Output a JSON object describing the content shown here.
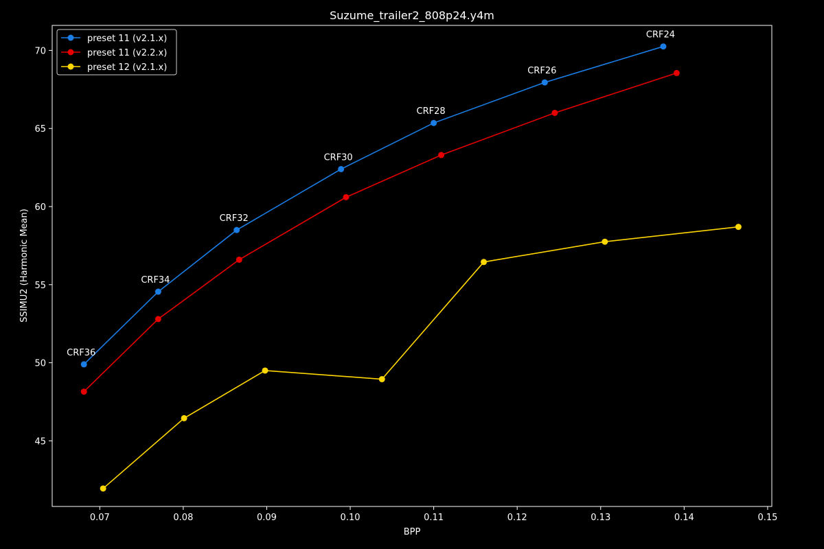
{
  "chart_data": {
    "type": "line",
    "title": "Suzume_trailer2_808p24.y4m",
    "xlabel": "BPP",
    "ylabel": "SSIMU2 (Harmonic Mean)",
    "xlim": [
      0.0643,
      0.1505
    ],
    "ylim": [
      40.8,
      71.6
    ],
    "xticks": [
      0.07,
      0.08,
      0.09,
      0.1,
      0.11,
      0.12,
      0.13,
      0.14,
      0.15
    ],
    "xtick_labels": [
      "0.07",
      "0.08",
      "0.09",
      "0.10",
      "0.11",
      "0.12",
      "0.13",
      "0.14",
      "0.15"
    ],
    "yticks": [
      45,
      50,
      55,
      60,
      65,
      70
    ],
    "ytick_labels": [
      "45",
      "50",
      "55",
      "60",
      "65",
      "70"
    ],
    "grid": false,
    "legend_position": "top-left",
    "background": "#000000",
    "series": [
      {
        "name": "preset 11 (v2.1.x)",
        "color": "#1a7ee6",
        "x": [
          0.0681,
          0.077,
          0.0864,
          0.0989,
          0.11,
          0.1233,
          0.1375
        ],
        "y": [
          49.9,
          54.55,
          58.5,
          62.4,
          65.35,
          67.95,
          70.25
        ]
      },
      {
        "name": "preset 11 (v2.2.x)",
        "color": "#e60000",
        "x": [
          0.0681,
          0.077,
          0.0867,
          0.0995,
          0.1109,
          0.1245,
          0.1391
        ],
        "y": [
          48.15,
          52.8,
          56.6,
          60.6,
          63.3,
          66.0,
          68.55
        ]
      },
      {
        "name": "preset 12 (v2.1.x)",
        "color": "#ffd700",
        "x": [
          0.0704,
          0.0801,
          0.0898,
          0.1038,
          0.116,
          0.1305,
          0.1465
        ],
        "y": [
          41.95,
          46.45,
          49.5,
          48.95,
          56.45,
          57.75,
          58.7
        ]
      }
    ],
    "annotations": [
      {
        "text": "CRF36",
        "x": 0.0681,
        "y": 49.9
      },
      {
        "text": "CRF34",
        "x": 0.077,
        "y": 54.55
      },
      {
        "text": "CRF32",
        "x": 0.0864,
        "y": 58.5
      },
      {
        "text": "CRF30",
        "x": 0.0989,
        "y": 62.4
      },
      {
        "text": "CRF28",
        "x": 0.11,
        "y": 65.35
      },
      {
        "text": "CRF26",
        "x": 0.1233,
        "y": 67.95
      },
      {
        "text": "CRF24",
        "x": 0.1375,
        "y": 70.25
      }
    ]
  }
}
